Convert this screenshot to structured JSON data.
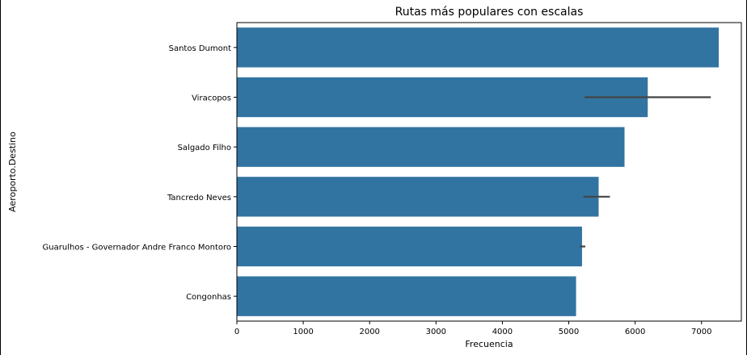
{
  "chart_data": {
    "type": "bar",
    "orientation": "horizontal",
    "title": "Rutas más populares con escalas",
    "xlabel": "Frecuencia",
    "ylabel": "Aeroporto.Destino",
    "xlim": [
      0,
      7600
    ],
    "xticks": [
      0,
      1000,
      2000,
      3000,
      4000,
      5000,
      6000,
      7000
    ],
    "grid": false,
    "categories": [
      "Santos Dumont",
      "Viracopos",
      "Salgado Filho",
      "Tancredo Neves",
      "Guarulhos - Governador Andre Franco Montoro",
      "Congonhas"
    ],
    "values": [
      7260,
      6190,
      5840,
      5450,
      5200,
      5110
    ],
    "error_bars": [
      null,
      [
        5240,
        7140
      ],
      null,
      [
        5220,
        5620
      ],
      [
        5170,
        5250
      ],
      null
    ],
    "colors": {
      "bar": "#3274a1",
      "error": "#444444"
    }
  }
}
